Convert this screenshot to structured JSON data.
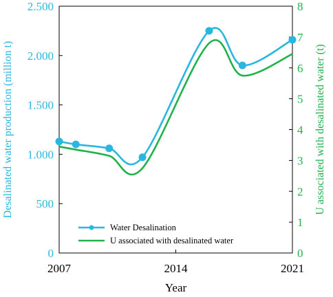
{
  "chart_data": {
    "type": "line",
    "xlabel": "Year",
    "ylabel_left": "Desalinated water production (million t)",
    "ylabel_right": "U associated with desalinated water (t)",
    "xlim": [
      2007,
      2021
    ],
    "ylim_left": [
      0,
      2500
    ],
    "ylim_right": [
      0,
      8
    ],
    "x_ticks": [
      {
        "value": 2007,
        "label": "2007"
      },
      {
        "value": 2014,
        "label": "2014"
      },
      {
        "value": 2021,
        "label": "2021"
      }
    ],
    "y_ticks_left": [
      {
        "value": 0,
        "label": "0"
      },
      {
        "value": 500,
        "label": "500"
      },
      {
        "value": 1000,
        "label": "1.000"
      },
      {
        "value": 1500,
        "label": "1.500"
      },
      {
        "value": 2000,
        "label": "2.000"
      },
      {
        "value": 2500,
        "label": "2.500"
      }
    ],
    "y_ticks_right": [
      {
        "value": 0,
        "label": "0"
      },
      {
        "value": 1,
        "label": "1"
      },
      {
        "value": 2,
        "label": "2"
      },
      {
        "value": 3,
        "label": "3"
      },
      {
        "value": 4,
        "label": "4"
      },
      {
        "value": 5,
        "label": "5"
      },
      {
        "value": 6,
        "label": "6"
      },
      {
        "value": 7,
        "label": "7"
      },
      {
        "value": 8,
        "label": "8"
      }
    ],
    "legend_position": "bottom-left inside plot",
    "grid": false,
    "series": [
      {
        "name": "Water Desalination",
        "axis": "left",
        "color": "#29b6e0",
        "markers": true,
        "x": [
          2007,
          2008,
          2010,
          2012,
          2016,
          2018,
          2021
        ],
        "y": [
          1130,
          1100,
          1060,
          970,
          2250,
          1900,
          2160
        ]
      },
      {
        "name": "U associated with desalinated water",
        "axis": "right",
        "color": "#1fb24a",
        "markers": false,
        "x": [
          2007,
          2008,
          2010,
          2012,
          2016,
          2018,
          2021
        ],
        "y": [
          3.45,
          3.35,
          3.15,
          2.75,
          6.8,
          5.75,
          6.45
        ]
      }
    ]
  }
}
